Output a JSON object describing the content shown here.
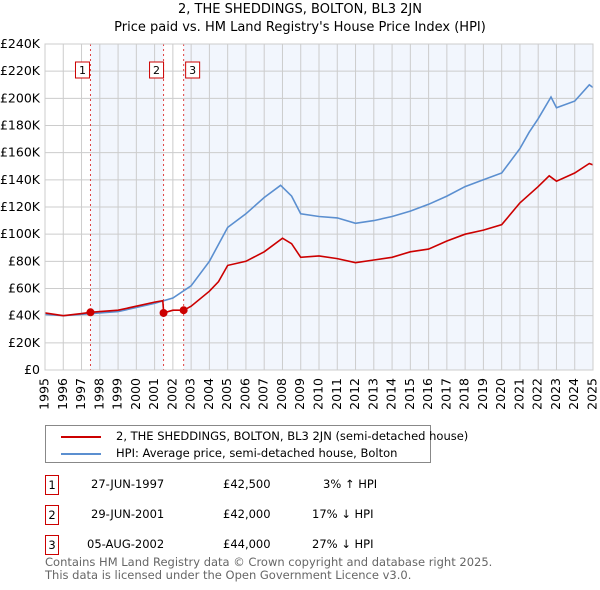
{
  "chart_data": {
    "type": "line",
    "title": "2, THE SHEDDINGS, BOLTON, BL3 2JN",
    "subtitle": "Price paid vs. HM Land Registry's House Price Index (HPI)",
    "xlim": [
      1995,
      2025
    ],
    "ylim": [
      0,
      240000
    ],
    "x_ticks": [
      "1995",
      "1996",
      "1997",
      "1998",
      "1999",
      "2000",
      "2001",
      "2002",
      "2003",
      "2004",
      "2005",
      "2006",
      "2007",
      "2008",
      "2009",
      "2010",
      "2011",
      "2012",
      "2013",
      "2014",
      "2015",
      "2016",
      "2017",
      "2018",
      "2019",
      "2020",
      "2021",
      "2022",
      "2023",
      "2024",
      "2025"
    ],
    "y_ticks": [
      "£0",
      "£20K",
      "£40K",
      "£60K",
      "£80K",
      "£100K",
      "£120K",
      "£140K",
      "£160K",
      "£180K",
      "£200K",
      "£220K",
      "£240K"
    ],
    "grid": true,
    "series": [
      {
        "name": "2, THE SHEDDINGS, BOLTON, BL3 2JN (semi-detached house)",
        "color": "#cc0000",
        "x": [
          1995,
          1996,
          1997,
          1997.5,
          1998,
          1999,
          2000,
          2001,
          2001.45,
          2001.5,
          2002,
          2002.6,
          2003,
          2004,
          2004.5,
          2005,
          2006,
          2007,
          2008,
          2008.5,
          2009,
          2010,
          2011,
          2012,
          2013,
          2014,
          2015,
          2016,
          2017,
          2018,
          2019,
          2020,
          2021,
          2022,
          2022.6,
          2023,
          2024,
          2024.8,
          2025
        ],
        "y": [
          42000,
          40000,
          41500,
          42500,
          43000,
          44000,
          47000,
          50000,
          51000,
          42000,
          44000,
          44000,
          47000,
          58000,
          65000,
          77000,
          80000,
          87000,
          97000,
          93000,
          83000,
          84000,
          82000,
          79000,
          81000,
          83000,
          87000,
          89000,
          95000,
          100000,
          103000,
          107000,
          123000,
          135000,
          143000,
          139000,
          145000,
          152000,
          151000
        ]
      },
      {
        "name": "HPI: Average price, semi-detached house, Bolton",
        "color": "#5b8fd0",
        "x": [
          1995,
          1996,
          1997,
          1998,
          1999,
          2000,
          2001,
          2002,
          2003,
          2004,
          2005,
          2006,
          2007,
          2007.9,
          2008.5,
          2009,
          2010,
          2011,
          2012,
          2013,
          2014,
          2015,
          2016,
          2017,
          2018,
          2019,
          2020,
          2021,
          2021.5,
          2022,
          2022.7,
          2023,
          2024,
          2024.8,
          2025
        ],
        "y": [
          41000,
          40000,
          41000,
          42000,
          43000,
          46000,
          49000,
          53000,
          62000,
          80000,
          105000,
          115000,
          127000,
          136000,
          128000,
          115000,
          113000,
          112000,
          108000,
          110000,
          113000,
          117000,
          122000,
          128000,
          135000,
          140000,
          145000,
          163000,
          175000,
          185000,
          201000,
          193000,
          198000,
          210000,
          208000
        ]
      }
    ],
    "sales": [
      {
        "id": "1",
        "x": 1997.49,
        "y": 42500,
        "date": "27-JUN-1997",
        "price": "£42,500",
        "hpi": "3% ↑ HPI"
      },
      {
        "id": "2",
        "x": 2001.49,
        "y": 42000,
        "date": "29-JUN-2001",
        "price": "£42,000",
        "hpi": "17% ↓ HPI"
      },
      {
        "id": "3",
        "x": 2002.59,
        "y": 44000,
        "date": "05-AUG-2002",
        "price": "£44,000",
        "hpi": "27% ↓ HPI"
      }
    ]
  },
  "footer": {
    "line1": "Contains HM Land Registry data © Crown copyright and database right 2025.",
    "line2": "This data is licensed under the Open Government Licence v3.0."
  }
}
